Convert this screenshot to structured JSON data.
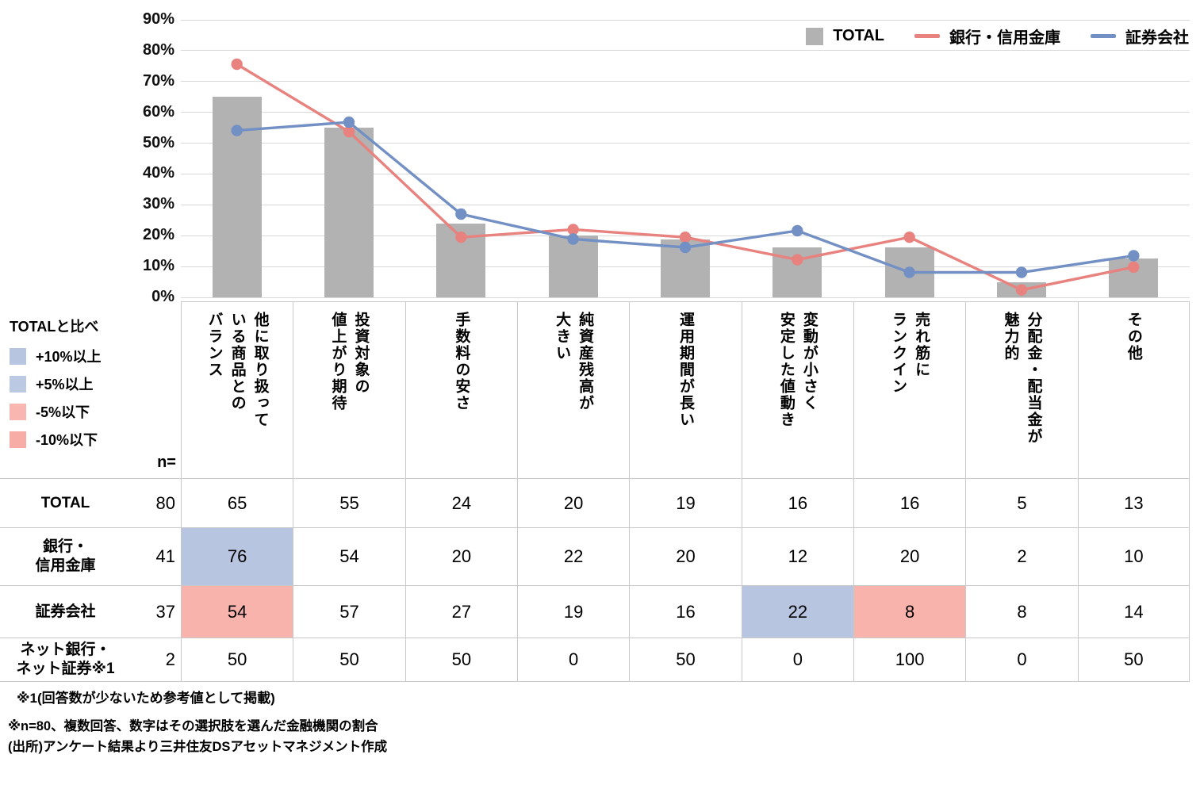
{
  "chart_data": {
    "type": "bar+line",
    "categories": [
      "他に取り扱って\nいる商品との\nバランス",
      "投資対象の\n値上がり期待",
      "手数料の安さ",
      "純資産残高が\n大きい",
      "運用期間が長い",
      "変動が小さく\n安定した値動き",
      "売れ筋に\nランクイン",
      "分配金・配当金が\n魅力的",
      "その他"
    ],
    "series": [
      {
        "name": "TOTAL",
        "type": "bar",
        "color": "#b2b2b2",
        "values": [
          65,
          55,
          23.8,
          20,
          18.8,
          16.3,
          16.3,
          5,
          12.5
        ]
      },
      {
        "name": "銀行・信用金庫",
        "type": "line",
        "color": "#e8827e",
        "values": [
          75.6,
          53.7,
          19.5,
          22,
          19.5,
          12.2,
          19.5,
          2.4,
          9.8
        ]
      },
      {
        "name": "証券会社",
        "type": "line",
        "color": "#7390c4",
        "values": [
          54.1,
          56.8,
          27,
          18.9,
          16.2,
          21.6,
          8.1,
          8.1,
          13.5
        ]
      }
    ],
    "ylim": [
      0,
      90
    ],
    "y_tick_step": 10,
    "y_ticks": [
      "0%",
      "10%",
      "20%",
      "30%",
      "40%",
      "50%",
      "60%",
      "70%",
      "80%",
      "90%"
    ],
    "grid": true,
    "legend_position": "top-right"
  },
  "compare_legend": {
    "title": "TOTALと比べ",
    "items": [
      {
        "label": "+10%以上",
        "color": "#b8c5e0"
      },
      {
        "label": "+5%以上",
        "color": "#bcc9e2"
      },
      {
        "label": "-5%以下",
        "color": "#f9b6b0"
      },
      {
        "label": "-10%以下",
        "color": "#f8aca6"
      }
    ],
    "n_label": "n="
  },
  "table": {
    "highlight_colors": {
      "blue": "#b8c5e0",
      "pink": "#f9b3ad"
    },
    "rows": [
      {
        "header": "TOTAL",
        "n": "80",
        "values": [
          "65",
          "55",
          "24",
          "20",
          "19",
          "16",
          "16",
          "5",
          "13"
        ],
        "highlights": [
          null,
          null,
          null,
          null,
          null,
          null,
          null,
          null,
          null
        ]
      },
      {
        "header": "銀行・\n信用金庫",
        "n": "41",
        "values": [
          "76",
          "54",
          "20",
          "22",
          "20",
          "12",
          "20",
          "2",
          "10"
        ],
        "highlights": [
          "blue",
          null,
          null,
          null,
          null,
          null,
          null,
          null,
          null
        ]
      },
      {
        "header": "証券会社",
        "n": "37",
        "values": [
          "54",
          "57",
          "27",
          "19",
          "16",
          "22",
          "8",
          "8",
          "14"
        ],
        "highlights": [
          "pink",
          null,
          null,
          null,
          null,
          "blue",
          "pink",
          null,
          null
        ]
      },
      {
        "header": "ネット銀行・\nネット証券※1",
        "n": "2",
        "values": [
          "50",
          "50",
          "50",
          "0",
          "50",
          "0",
          "100",
          "0",
          "50"
        ],
        "highlights": [
          null,
          null,
          null,
          null,
          null,
          null,
          null,
          null,
          null
        ]
      }
    ]
  },
  "footnotes": {
    "note1": "※1(回答数が少ないため参考値として掲載)",
    "note2": "※n=80、複数回答、数字はその選択肢を選んだ金融機関の割合",
    "source": "(出所)アンケート結果より三井住友DSアセットマネジメント作成"
  }
}
